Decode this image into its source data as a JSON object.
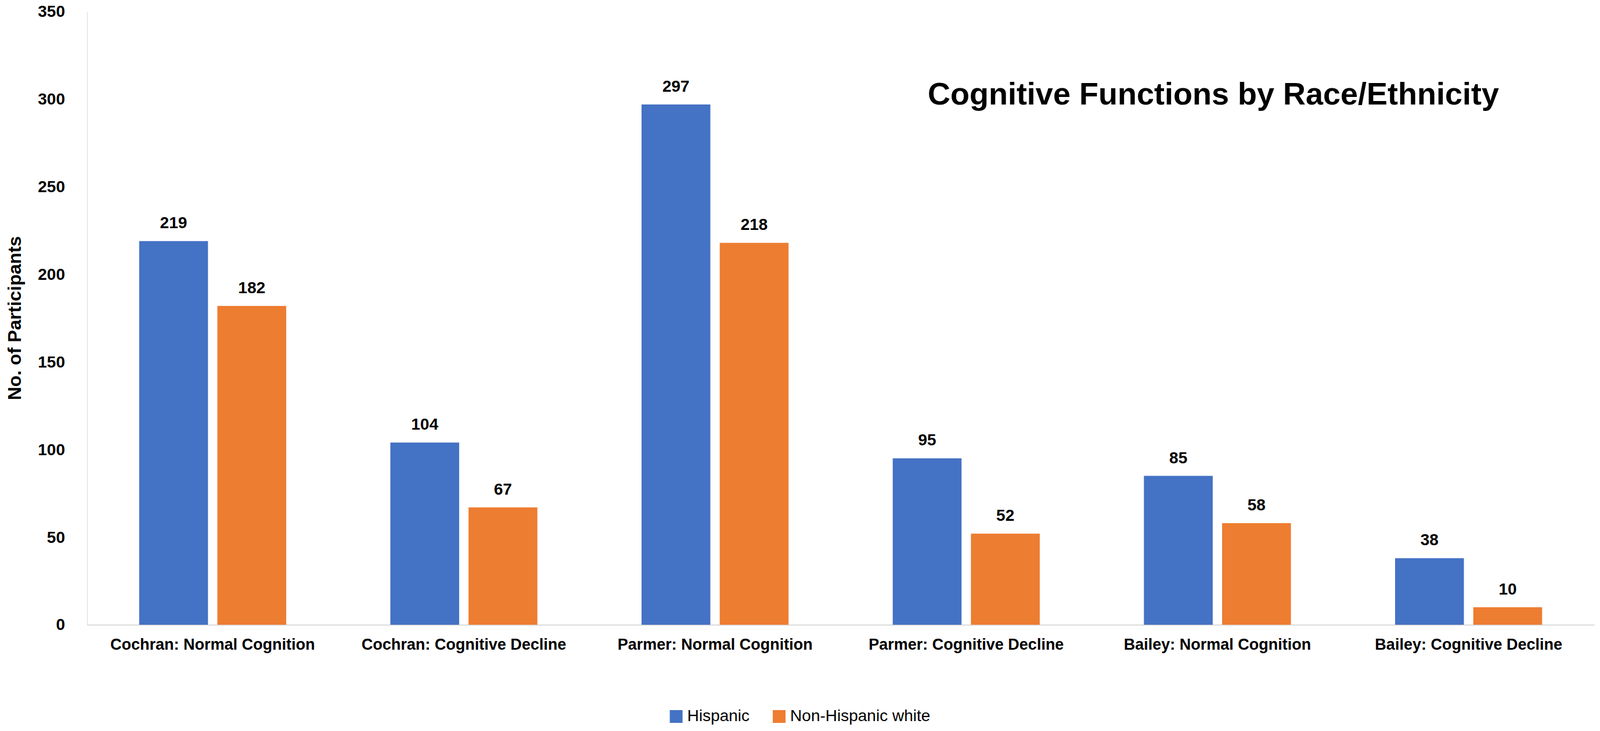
{
  "chart_data": {
    "type": "bar",
    "title": "Cognitive Functions by Race/Ethnicity",
    "y_label": "No. of Participants",
    "categories": [
      "Cochran: Normal Cognition",
      "Cochran: Cognitive Decline",
      "Parmer: Normal Cognition",
      "Parmer: Cognitive Decline",
      "Bailey: Normal Cognition",
      "Bailey: Cognitive Decline"
    ],
    "series": [
      {
        "name": "Hispanic",
        "color": "#4472c4",
        "values": [
          219,
          104,
          297,
          95,
          85,
          38
        ]
      },
      {
        "name": "Non-Hispanic white",
        "color": "#ed7d31",
        "values": [
          182,
          67,
          218,
          52,
          58,
          10
        ]
      }
    ],
    "ylim": [
      0,
      350
    ],
    "yticks": [
      0,
      50,
      100,
      150,
      200,
      250,
      300,
      350
    ],
    "grid": false,
    "legend": "bottom",
    "data_labels": true
  }
}
